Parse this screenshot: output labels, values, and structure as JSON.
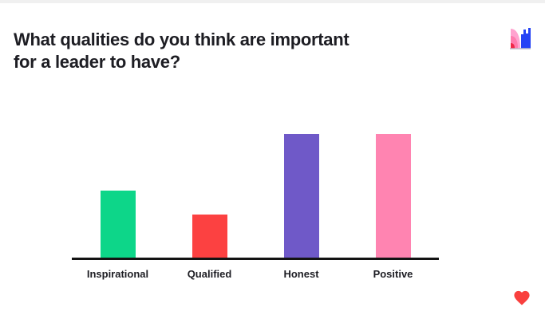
{
  "slide": {
    "title_line1": "What qualities do you think are important",
    "title_line2": "for a leader to have?",
    "background": "#ffffff",
    "top_strip_color": "#f0f0f0",
    "text_color": "#1d1d23"
  },
  "branding": {
    "logo_icon": "mentimeter-logo-mark",
    "logo_colors": {
      "light_pink": "#ffa3cf",
      "mid_pink": "#ff7cae",
      "red": "#f02849",
      "blue": "#2442f5",
      "baseline_gray": "#b9bac4"
    },
    "heart_color": "#f9403e"
  },
  "chart_data": {
    "type": "bar",
    "title": "What qualities do you think are important for a leader to have?",
    "categories": [
      "Inspirational",
      "Qualified",
      "Honest",
      "Positive"
    ],
    "values": [
      54,
      35,
      100,
      100
    ],
    "value_note": "no numeric axis or data labels shown; values are relative bar heights as % of tallest bar",
    "bar_colors": [
      "#0dd689",
      "#fc4141",
      "#6f59c8",
      "#ff84b1"
    ],
    "xlabel": "",
    "ylabel": "",
    "ylim": [
      0,
      100
    ],
    "grid": false,
    "legend": false,
    "axis_line_color": "#131313"
  }
}
